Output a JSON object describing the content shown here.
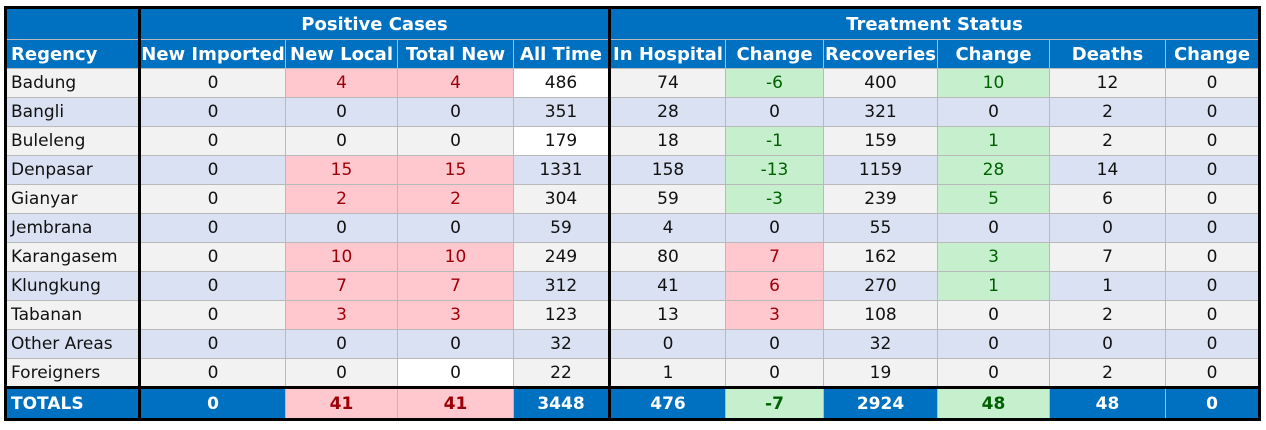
{
  "groups": {
    "positive_cases": "Positive Cases",
    "treatment_status": "Treatment Status"
  },
  "columns": [
    "Regency",
    "New Imported",
    "New Local",
    "Total New",
    "All Time",
    "In Hospital",
    "Change",
    "Recoveries",
    "Change",
    "Deaths",
    "Change"
  ],
  "rows": [
    {
      "regency": "Badung",
      "new_imported": "0",
      "new_local": "4",
      "total_new": "4",
      "all_time": "486",
      "in_hospital": "74",
      "hosp_change": "-6",
      "recoveries": "400",
      "rec_change": "10",
      "deaths": "12",
      "death_change": "0"
    },
    {
      "regency": "Bangli",
      "new_imported": "0",
      "new_local": "0",
      "total_new": "0",
      "all_time": "351",
      "in_hospital": "28",
      "hosp_change": "0",
      "recoveries": "321",
      "rec_change": "0",
      "deaths": "2",
      "death_change": "0"
    },
    {
      "regency": "Buleleng",
      "new_imported": "0",
      "new_local": "0",
      "total_new": "0",
      "all_time": "179",
      "in_hospital": "18",
      "hosp_change": "-1",
      "recoveries": "159",
      "rec_change": "1",
      "deaths": "2",
      "death_change": "0"
    },
    {
      "regency": "Denpasar",
      "new_imported": "0",
      "new_local": "15",
      "total_new": "15",
      "all_time": "1331",
      "in_hospital": "158",
      "hosp_change": "-13",
      "recoveries": "1159",
      "rec_change": "28",
      "deaths": "14",
      "death_change": "0"
    },
    {
      "regency": "Gianyar",
      "new_imported": "0",
      "new_local": "2",
      "total_new": "2",
      "all_time": "304",
      "in_hospital": "59",
      "hosp_change": "-3",
      "recoveries": "239",
      "rec_change": "5",
      "deaths": "6",
      "death_change": "0"
    },
    {
      "regency": "Jembrana",
      "new_imported": "0",
      "new_local": "0",
      "total_new": "0",
      "all_time": "59",
      "in_hospital": "4",
      "hosp_change": "0",
      "recoveries": "55",
      "rec_change": "0",
      "deaths": "0",
      "death_change": "0"
    },
    {
      "regency": "Karangasem",
      "new_imported": "0",
      "new_local": "10",
      "total_new": "10",
      "all_time": "249",
      "in_hospital": "80",
      "hosp_change": "7",
      "recoveries": "162",
      "rec_change": "3",
      "deaths": "7",
      "death_change": "0"
    },
    {
      "regency": "Klungkung",
      "new_imported": "0",
      "new_local": "7",
      "total_new": "7",
      "all_time": "312",
      "in_hospital": "41",
      "hosp_change": "6",
      "recoveries": "270",
      "rec_change": "1",
      "deaths": "1",
      "death_change": "0"
    },
    {
      "regency": "Tabanan",
      "new_imported": "0",
      "new_local": "3",
      "total_new": "3",
      "all_time": "123",
      "in_hospital": "13",
      "hosp_change": "3",
      "recoveries": "108",
      "rec_change": "0",
      "deaths": "2",
      "death_change": "0"
    },
    {
      "regency": "Other Areas",
      "new_imported": "0",
      "new_local": "0",
      "total_new": "0",
      "all_time": "32",
      "in_hospital": "0",
      "hosp_change": "0",
      "recoveries": "32",
      "rec_change": "0",
      "deaths": "0",
      "death_change": "0"
    },
    {
      "regency": "Foreigners",
      "new_imported": "0",
      "new_local": "0",
      "total_new": "0",
      "all_time": "22",
      "in_hospital": "1",
      "hosp_change": "0",
      "recoveries": "19",
      "rec_change": "0",
      "deaths": "2",
      "death_change": "0"
    }
  ],
  "totals": {
    "label": "TOTALS",
    "new_imported": "0",
    "new_local": "41",
    "total_new": "41",
    "all_time": "3448",
    "in_hospital": "476",
    "hosp_change": "-7",
    "recoveries": "2924",
    "rec_change": "48",
    "deaths": "48",
    "death_change": "0"
  },
  "colors": {
    "header_blue": "#0070c0",
    "increase_fill": "#ffc7ce",
    "increase_text": "#9c0006",
    "decrease_fill": "#c6efce",
    "decrease_text": "#006100",
    "row_band_light": "#f2f2f2",
    "row_band_blue": "#d9e1f2"
  }
}
